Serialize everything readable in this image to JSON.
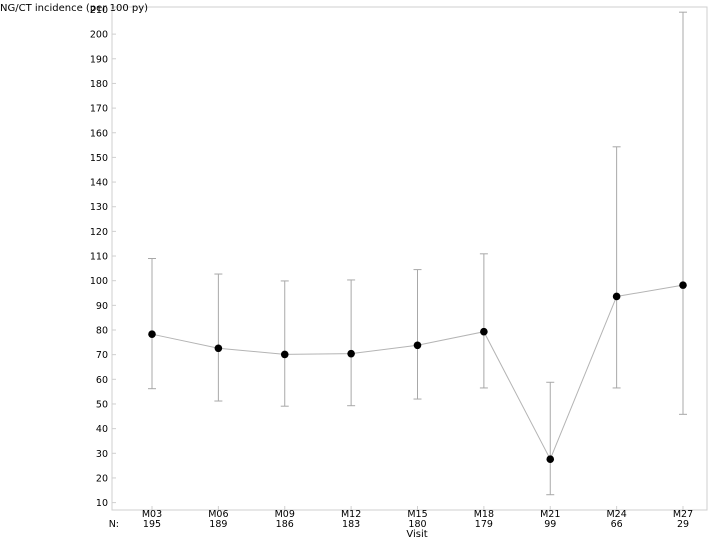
{
  "chart_data": {
    "type": "scatter",
    "title": "",
    "ylabel": "NG/CT incidence (per 100 py)",
    "xlabel": "Visit",
    "categories": [
      "M03",
      "M06",
      "M09",
      "M12",
      "M15",
      "M18",
      "M21",
      "M24",
      "M27"
    ],
    "n_label": "N:",
    "n_values": [
      "195",
      "189",
      "186",
      "183",
      "180",
      "179",
      "99",
      "66",
      "29"
    ],
    "values": [
      78.3,
      72.6,
      70.1,
      70.4,
      73.8,
      79.3,
      27.6,
      93.6,
      98.2
    ],
    "lower": [
      56.2,
      51.2,
      49.1,
      49.3,
      52.0,
      56.5,
      13.2,
      56.5,
      45.8
    ],
    "upper": [
      109.0,
      102.7,
      99.9,
      100.3,
      104.5,
      110.9,
      58.8,
      154.3,
      208.9
    ],
    "ylim": [
      7,
      211
    ],
    "yticks": [
      10,
      20,
      30,
      40,
      50,
      60,
      70,
      80,
      90,
      100,
      110,
      120,
      130,
      140,
      150,
      160,
      170,
      180,
      190,
      200,
      210
    ],
    "grid": false,
    "colors": {
      "marker": "#000000",
      "line": "#b4b4b4",
      "errorbar": "#a8a8a8",
      "frame": "#cfcfcf"
    }
  }
}
